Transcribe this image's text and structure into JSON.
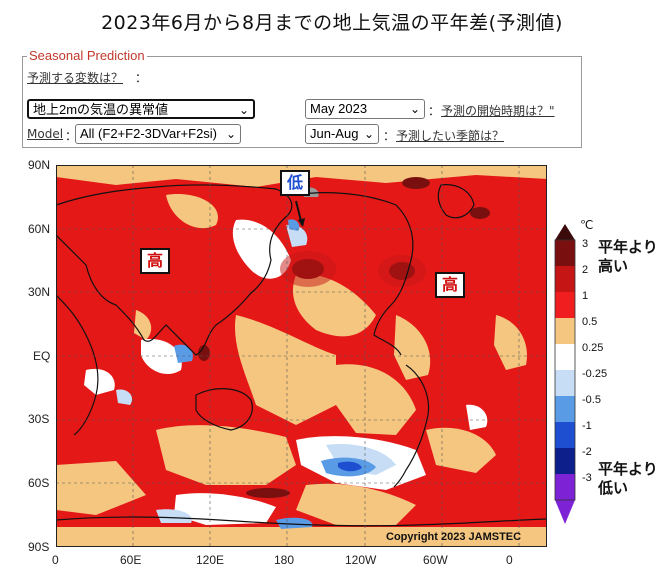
{
  "title": "2023年6月から8月までの地上気温の平年差(予測値)",
  "panel": {
    "legend": "Seasonal Prediction",
    "variable_prompt": "予測する変数は？",
    "colon": "：",
    "variable_value": "地上2mの気温の異常値",
    "start_value": "May 2023",
    "start_prompt": "予測の開始時期は？\"",
    "model_label": "Model",
    "model_value": "All (F2+F2-3DVar+F2si)",
    "season_value": "Jun-Aug",
    "season_prompt": "予測したい季節は？"
  },
  "map": {
    "lat_labels": [
      "90N",
      "60N",
      "30N",
      "EQ",
      "30S",
      "60S",
      "90S"
    ],
    "lon_labels": [
      "0",
      "60E",
      "120E",
      "180",
      "120W",
      "60W",
      "0"
    ],
    "copyright": "Copyright 2023  JAMSTEC",
    "markers": {
      "high_left": "高",
      "low": "低",
      "high_right": "高"
    }
  },
  "colorbar": {
    "unit": "℃",
    "levels": [
      "3",
      "2",
      "1",
      "0.5",
      "0.25",
      "-0.25",
      "-0.5",
      "-1",
      "-2",
      "-3"
    ],
    "colors": [
      "#3b0a0a",
      "#7a0f0f",
      "#c51515",
      "#f01e1e",
      "#f5c680",
      "#ffffff",
      "#c6ddf5",
      "#5a9be6",
      "#1e4fd0",
      "#0d1f8a",
      "#7e22d6"
    ],
    "above_text_1": "平年より",
    "above_text_2": "高い",
    "below_text_1": "平年より",
    "below_text_2": "低い"
  }
}
